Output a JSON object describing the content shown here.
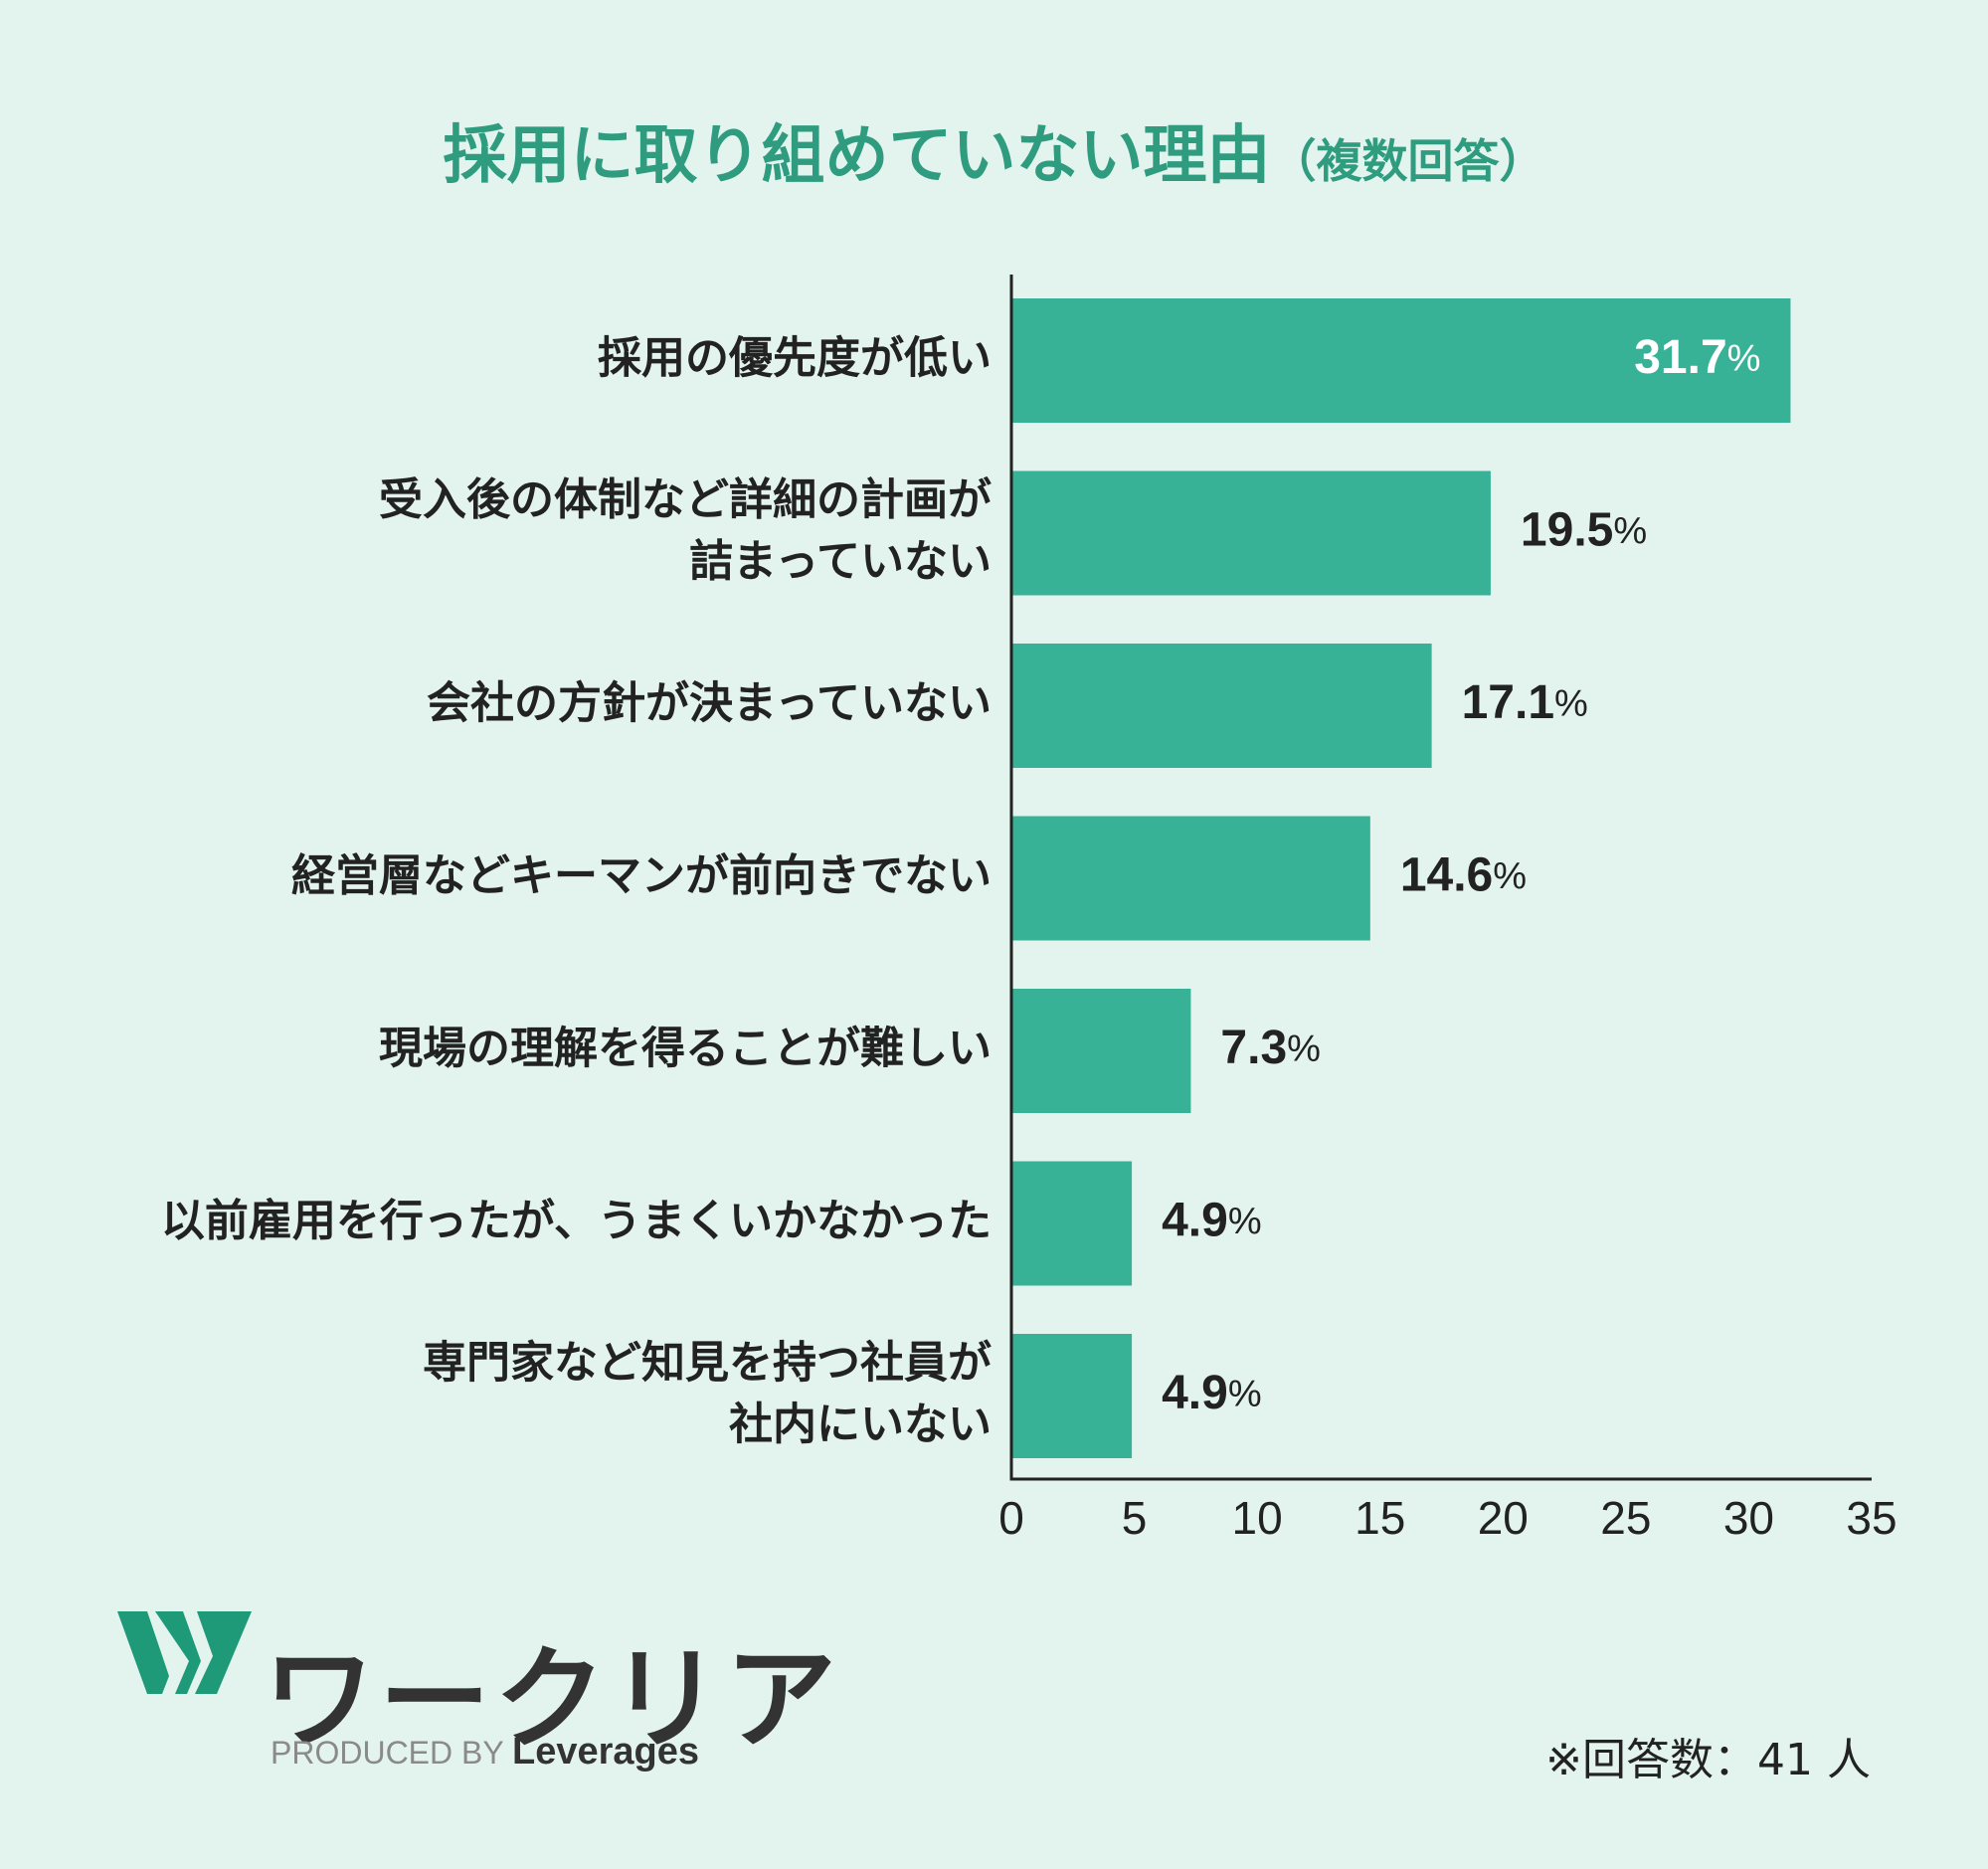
{
  "title": {
    "main": "採用に取り組めていない理由",
    "sub": "（複数回答）"
  },
  "chart_data": {
    "type": "bar",
    "orientation": "horizontal",
    "title": "採用に取り組めていない理由（複数回答）",
    "categories": [
      [
        "採用の優先度が低い"
      ],
      [
        "受入後の体制など詳細の計画が",
        "詰まっていない"
      ],
      [
        "会社の方針が決まっていない"
      ],
      [
        "経営層などキーマンが前向きでない"
      ],
      [
        "現場の理解を得ることが難しい"
      ],
      [
        "以前雇用を行ったが、うまくいかなかった"
      ],
      [
        "専門家など知見を持つ社員が",
        "社内にいない"
      ]
    ],
    "values": [
      31.7,
      19.5,
      17.1,
      14.6,
      7.3,
      4.9,
      4.9
    ],
    "value_labels": [
      "31.7",
      "19.5",
      "17.1",
      "14.6",
      "7.3",
      "4.9",
      "4.9"
    ],
    "unit": "%",
    "xlim": [
      0,
      35
    ],
    "xticks": [
      "0",
      "5",
      "10",
      "15",
      "20",
      "25",
      "30",
      "35"
    ],
    "grid": false,
    "colors": {
      "bar": "#38b296",
      "title": "#2f9c7f",
      "text": "#222222",
      "inside_label": "#ffffff",
      "axis": "#222222",
      "background": "#e3f4ef"
    }
  },
  "footer": {
    "logo_text": "ワークリア",
    "produced_by": "PRODUCED BY",
    "brand": "Leverages",
    "respondents": "※回答数：41 人"
  },
  "colors": {
    "logo_green": "#1f9a78",
    "logo_text": "#333333"
  }
}
